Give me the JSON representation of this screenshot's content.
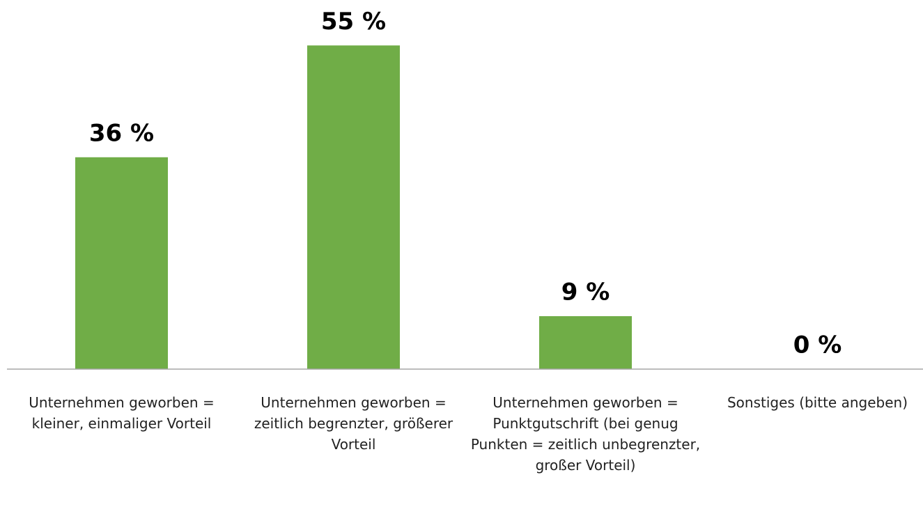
{
  "chart_data": {
    "type": "bar",
    "categories": [
      "Unternehmen geworben = kleiner, einmaliger Vorteil",
      "Unternehmen geworben = zeitlich begrenzter, größerer Vorteil",
      "Unternehmen geworben = Punktgutschrift (bei genug Punkten = zeitlich unbegrenzter, großer Vorteil)",
      "Sonstiges (bitte angeben)"
    ],
    "values": [
      36,
      55,
      9,
      0
    ],
    "value_labels": [
      "36 %",
      "55 %",
      "9 %",
      "0 %"
    ],
    "color": "#70ad47",
    "ylim": [
      0,
      60
    ]
  }
}
